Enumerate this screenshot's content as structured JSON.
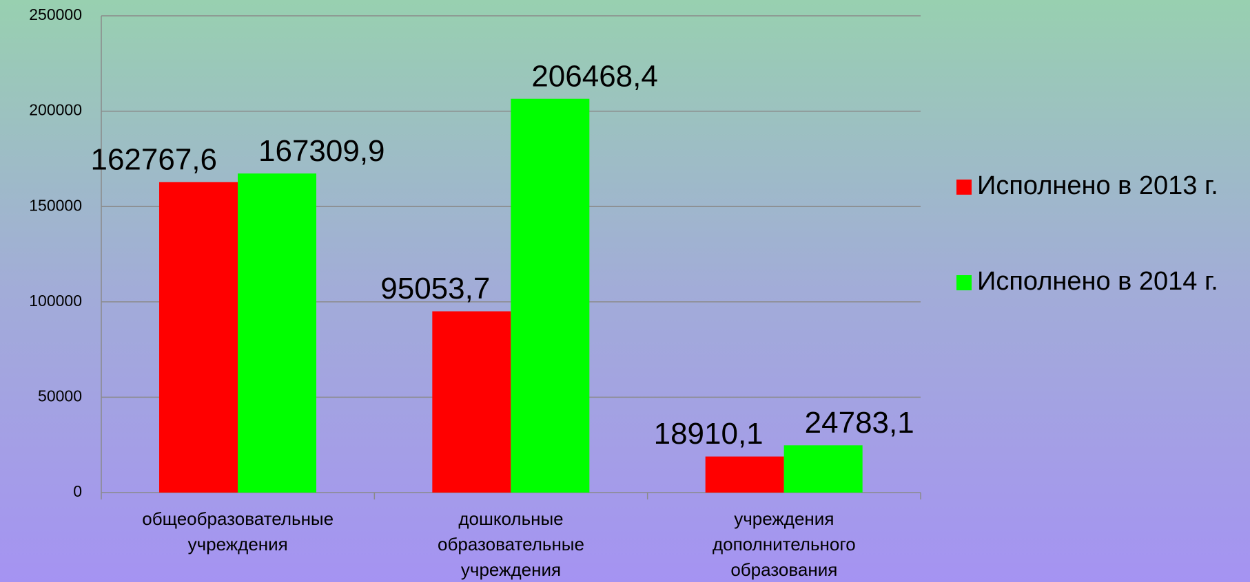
{
  "chart_data": {
    "type": "bar",
    "categories": [
      "общеобразовательные учреждения",
      "дошкольные образовательные учреждения",
      "учреждения дополнительного образования"
    ],
    "series": [
      {
        "name": "Исполнено в 2013 г.",
        "color": "#ff0000",
        "values": [
          162767.6,
          95053.7,
          18910.1
        ],
        "value_labels": [
          "162767,6",
          "95053,7",
          "18910,1"
        ]
      },
      {
        "name": "Исполнено в 2014 г.",
        "color": "#00ff00",
        "values": [
          167309.9,
          206468.4,
          24783.1
        ],
        "value_labels": [
          "167309,9",
          "206468,4",
          "24783,1"
        ]
      }
    ],
    "ylim": [
      0,
      250000
    ],
    "yticks": [
      0,
      50000,
      100000,
      150000,
      200000,
      250000
    ],
    "grid": true,
    "legend": "right"
  }
}
